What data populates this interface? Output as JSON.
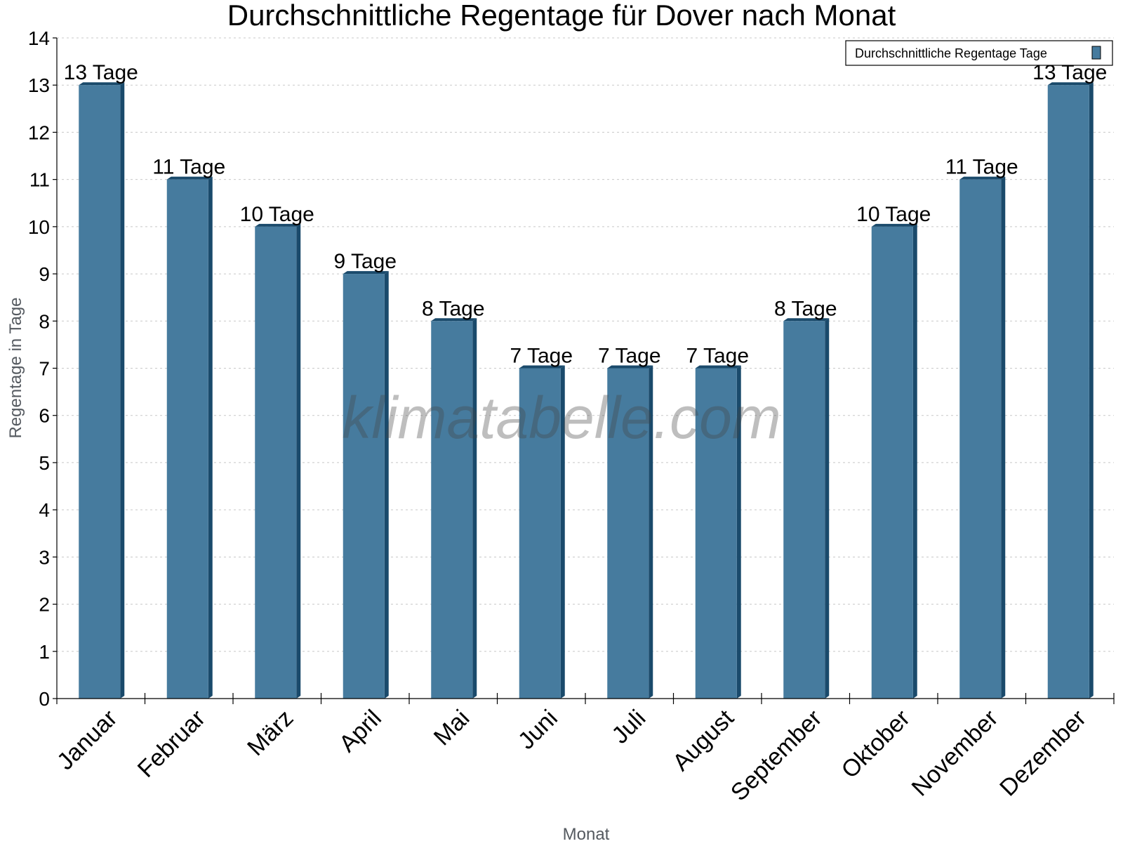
{
  "chart_data": {
    "type": "bar",
    "title": "Durchschnittliche Regentage für Dover nach Monat",
    "xlabel": "Monat",
    "ylabel": "Regentage in Tage",
    "categories": [
      "Januar",
      "Februar",
      "März",
      "April",
      "Mai",
      "Juni",
      "Juli",
      "August",
      "September",
      "Oktober",
      "November",
      "Dezember"
    ],
    "series": [
      {
        "name": "Durchschnittliche Regentage Tage",
        "values": [
          13,
          11,
          10,
          9,
          8,
          7,
          7,
          7,
          8,
          10,
          11,
          13
        ]
      }
    ],
    "data_labels": [
      "13 Tage",
      "11 Tage",
      "10 Tage",
      "9 Tage",
      "8 Tage",
      "7 Tage",
      "7 Tage",
      "7 Tage",
      "8 Tage",
      "10 Tage",
      "11 Tage",
      "13 Tage"
    ],
    "yticks": [
      "0",
      "1",
      "2",
      "3",
      "4",
      "5",
      "6",
      "7",
      "8",
      "9",
      "10",
      "11",
      "12",
      "13",
      "14"
    ],
    "ylim": [
      0,
      14
    ],
    "grid": true,
    "legend_position": "top-right",
    "watermark": "klimatabelle.com",
    "colors": {
      "bar": "#467b9e",
      "bar_side": "#1a4a6b",
      "grid": "#c8c8c8",
      "axis_label": "#555a60"
    }
  }
}
